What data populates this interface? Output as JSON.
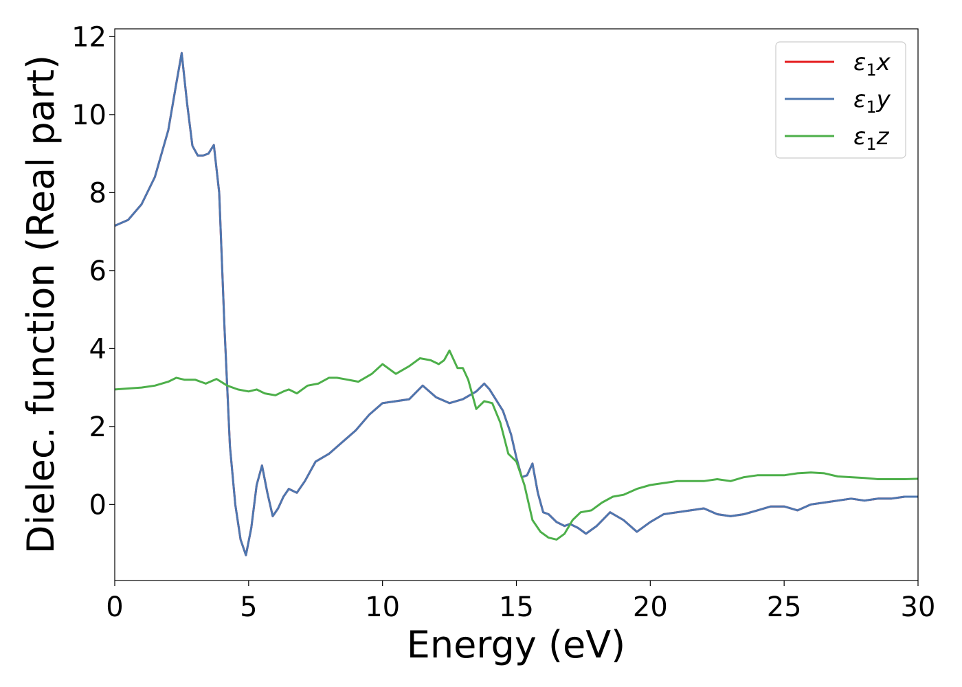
{
  "chart_data": {
    "type": "line",
    "title": "",
    "xlabel": "Energy (eV)",
    "ylabel": "Dielec. function (Real part)",
    "xlim": [
      0,
      30
    ],
    "ylim": [
      -1.95,
      12.2
    ],
    "xticks": [
      0,
      5,
      10,
      15,
      20,
      25,
      30
    ],
    "yticks": [
      0,
      2,
      4,
      6,
      8,
      10,
      12
    ],
    "grid": false,
    "legend_position": "top-right",
    "series": [
      {
        "name": "ε₁x",
        "legend_main": "ε",
        "legend_sub": "1",
        "legend_suffix": "x",
        "color": "#e41a1c",
        "x": [
          0,
          0.5,
          1.0,
          1.5,
          2.0,
          2.3,
          2.5,
          2.7,
          2.9,
          3.1,
          3.3,
          3.5,
          3.7,
          3.9,
          4.1,
          4.3,
          4.5,
          4.7,
          4.9,
          5.1,
          5.3,
          5.5,
          5.7,
          5.9,
          6.1,
          6.3,
          6.5,
          6.8,
          7.1,
          7.5,
          8.0,
          8.5,
          9.0,
          9.5,
          10.0,
          10.5,
          11.0,
          11.5,
          12.0,
          12.5,
          13.0,
          13.5,
          13.8,
          14.0,
          14.5,
          14.8,
          15.0,
          15.2,
          15.4,
          15.6,
          15.8,
          16.0,
          16.2,
          16.5,
          16.8,
          17.0,
          17.3,
          17.6,
          18.0,
          18.5,
          19.0,
          19.5,
          20.0,
          20.5,
          21.0,
          21.5,
          22.0,
          22.5,
          23.0,
          23.5,
          24.0,
          24.5,
          25.0,
          25.5,
          26.0,
          26.5,
          27.0,
          27.5,
          28.0,
          28.5,
          29.0,
          29.5,
          30.0
        ],
        "y": [
          7.15,
          7.3,
          7.7,
          8.4,
          9.6,
          10.8,
          11.58,
          10.3,
          9.2,
          8.95,
          8.95,
          9.0,
          9.22,
          8.0,
          4.5,
          1.5,
          0.0,
          -0.9,
          -1.3,
          -0.6,
          0.5,
          1.0,
          0.3,
          -0.3,
          -0.1,
          0.2,
          0.4,
          0.3,
          0.6,
          1.1,
          1.3,
          1.6,
          1.9,
          2.3,
          2.6,
          2.65,
          2.7,
          3.05,
          2.75,
          2.6,
          2.7,
          2.9,
          3.1,
          2.95,
          2.4,
          1.8,
          1.2,
          0.7,
          0.75,
          1.05,
          0.3,
          -0.2,
          -0.25,
          -0.45,
          -0.55,
          -0.5,
          -0.6,
          -0.75,
          -0.55,
          -0.2,
          -0.4,
          -0.7,
          -0.45,
          -0.25,
          -0.2,
          -0.15,
          -0.1,
          -0.25,
          -0.3,
          -0.25,
          -0.15,
          -0.05,
          -0.05,
          -0.15,
          0.0,
          0.05,
          0.1,
          0.15,
          0.1,
          0.15,
          0.15,
          0.2,
          0.2
        ]
      },
      {
        "name": "ε₁y",
        "legend_main": "ε",
        "legend_sub": "1",
        "legend_suffix": "y",
        "color": "#4d77b0",
        "x": [
          0,
          0.5,
          1.0,
          1.5,
          2.0,
          2.3,
          2.5,
          2.7,
          2.9,
          3.1,
          3.3,
          3.5,
          3.7,
          3.9,
          4.1,
          4.3,
          4.5,
          4.7,
          4.9,
          5.1,
          5.3,
          5.5,
          5.7,
          5.9,
          6.1,
          6.3,
          6.5,
          6.8,
          7.1,
          7.5,
          8.0,
          8.5,
          9.0,
          9.5,
          10.0,
          10.5,
          11.0,
          11.5,
          12.0,
          12.5,
          13.0,
          13.5,
          13.8,
          14.0,
          14.5,
          14.8,
          15.0,
          15.2,
          15.4,
          15.6,
          15.8,
          16.0,
          16.2,
          16.5,
          16.8,
          17.0,
          17.3,
          17.6,
          18.0,
          18.5,
          19.0,
          19.5,
          20.0,
          20.5,
          21.0,
          21.5,
          22.0,
          22.5,
          23.0,
          23.5,
          24.0,
          24.5,
          25.0,
          25.5,
          26.0,
          26.5,
          27.0,
          27.5,
          28.0,
          28.5,
          29.0,
          29.5,
          30.0
        ],
        "y": [
          7.15,
          7.3,
          7.7,
          8.4,
          9.6,
          10.8,
          11.58,
          10.3,
          9.2,
          8.95,
          8.95,
          9.0,
          9.22,
          8.0,
          4.5,
          1.5,
          0.0,
          -0.9,
          -1.3,
          -0.6,
          0.5,
          1.0,
          0.3,
          -0.3,
          -0.1,
          0.2,
          0.4,
          0.3,
          0.6,
          1.1,
          1.3,
          1.6,
          1.9,
          2.3,
          2.6,
          2.65,
          2.7,
          3.05,
          2.75,
          2.6,
          2.7,
          2.9,
          3.1,
          2.95,
          2.4,
          1.8,
          1.2,
          0.7,
          0.75,
          1.05,
          0.3,
          -0.2,
          -0.25,
          -0.45,
          -0.55,
          -0.5,
          -0.6,
          -0.75,
          -0.55,
          -0.2,
          -0.4,
          -0.7,
          -0.45,
          -0.25,
          -0.2,
          -0.15,
          -0.1,
          -0.25,
          -0.3,
          -0.25,
          -0.15,
          -0.05,
          -0.05,
          -0.15,
          0.0,
          0.05,
          0.1,
          0.15,
          0.1,
          0.15,
          0.15,
          0.2,
          0.2
        ]
      },
      {
        "name": "ε₁z",
        "legend_main": "ε",
        "legend_sub": "1",
        "legend_suffix": "z",
        "color": "#4daf4a",
        "x": [
          0,
          1.0,
          1.5,
          2.0,
          2.3,
          2.6,
          3.0,
          3.4,
          3.8,
          4.2,
          4.6,
          5.0,
          5.3,
          5.6,
          6.0,
          6.3,
          6.5,
          6.8,
          7.2,
          7.6,
          8.0,
          8.3,
          8.7,
          9.1,
          9.6,
          10.0,
          10.5,
          11.0,
          11.4,
          11.8,
          12.1,
          12.3,
          12.5,
          12.8,
          13.0,
          13.2,
          13.5,
          13.8,
          14.1,
          14.4,
          14.7,
          15.0,
          15.3,
          15.6,
          15.9,
          16.2,
          16.5,
          16.8,
          17.1,
          17.4,
          17.8,
          18.2,
          18.6,
          19.0,
          19.5,
          20.0,
          20.5,
          21.0,
          21.5,
          22.0,
          22.5,
          23.0,
          23.5,
          24.0,
          24.5,
          25.0,
          25.5,
          26.0,
          26.5,
          27.0,
          27.5,
          28.0,
          28.5,
          29.0,
          29.5,
          30.0
        ],
        "y": [
          2.95,
          3.0,
          3.05,
          3.15,
          3.25,
          3.2,
          3.2,
          3.1,
          3.22,
          3.05,
          2.95,
          2.9,
          2.95,
          2.85,
          2.8,
          2.9,
          2.95,
          2.85,
          3.05,
          3.1,
          3.25,
          3.25,
          3.2,
          3.15,
          3.35,
          3.6,
          3.35,
          3.55,
          3.75,
          3.7,
          3.6,
          3.7,
          3.95,
          3.5,
          3.5,
          3.2,
          2.45,
          2.65,
          2.6,
          2.1,
          1.3,
          1.1,
          0.5,
          -0.4,
          -0.7,
          -0.85,
          -0.9,
          -0.75,
          -0.4,
          -0.2,
          -0.15,
          0.05,
          0.2,
          0.25,
          0.4,
          0.5,
          0.55,
          0.6,
          0.6,
          0.6,
          0.65,
          0.6,
          0.7,
          0.75,
          0.75,
          0.75,
          0.8,
          0.82,
          0.8,
          0.72,
          0.7,
          0.68,
          0.65,
          0.65,
          0.65,
          0.66
        ]
      }
    ]
  }
}
